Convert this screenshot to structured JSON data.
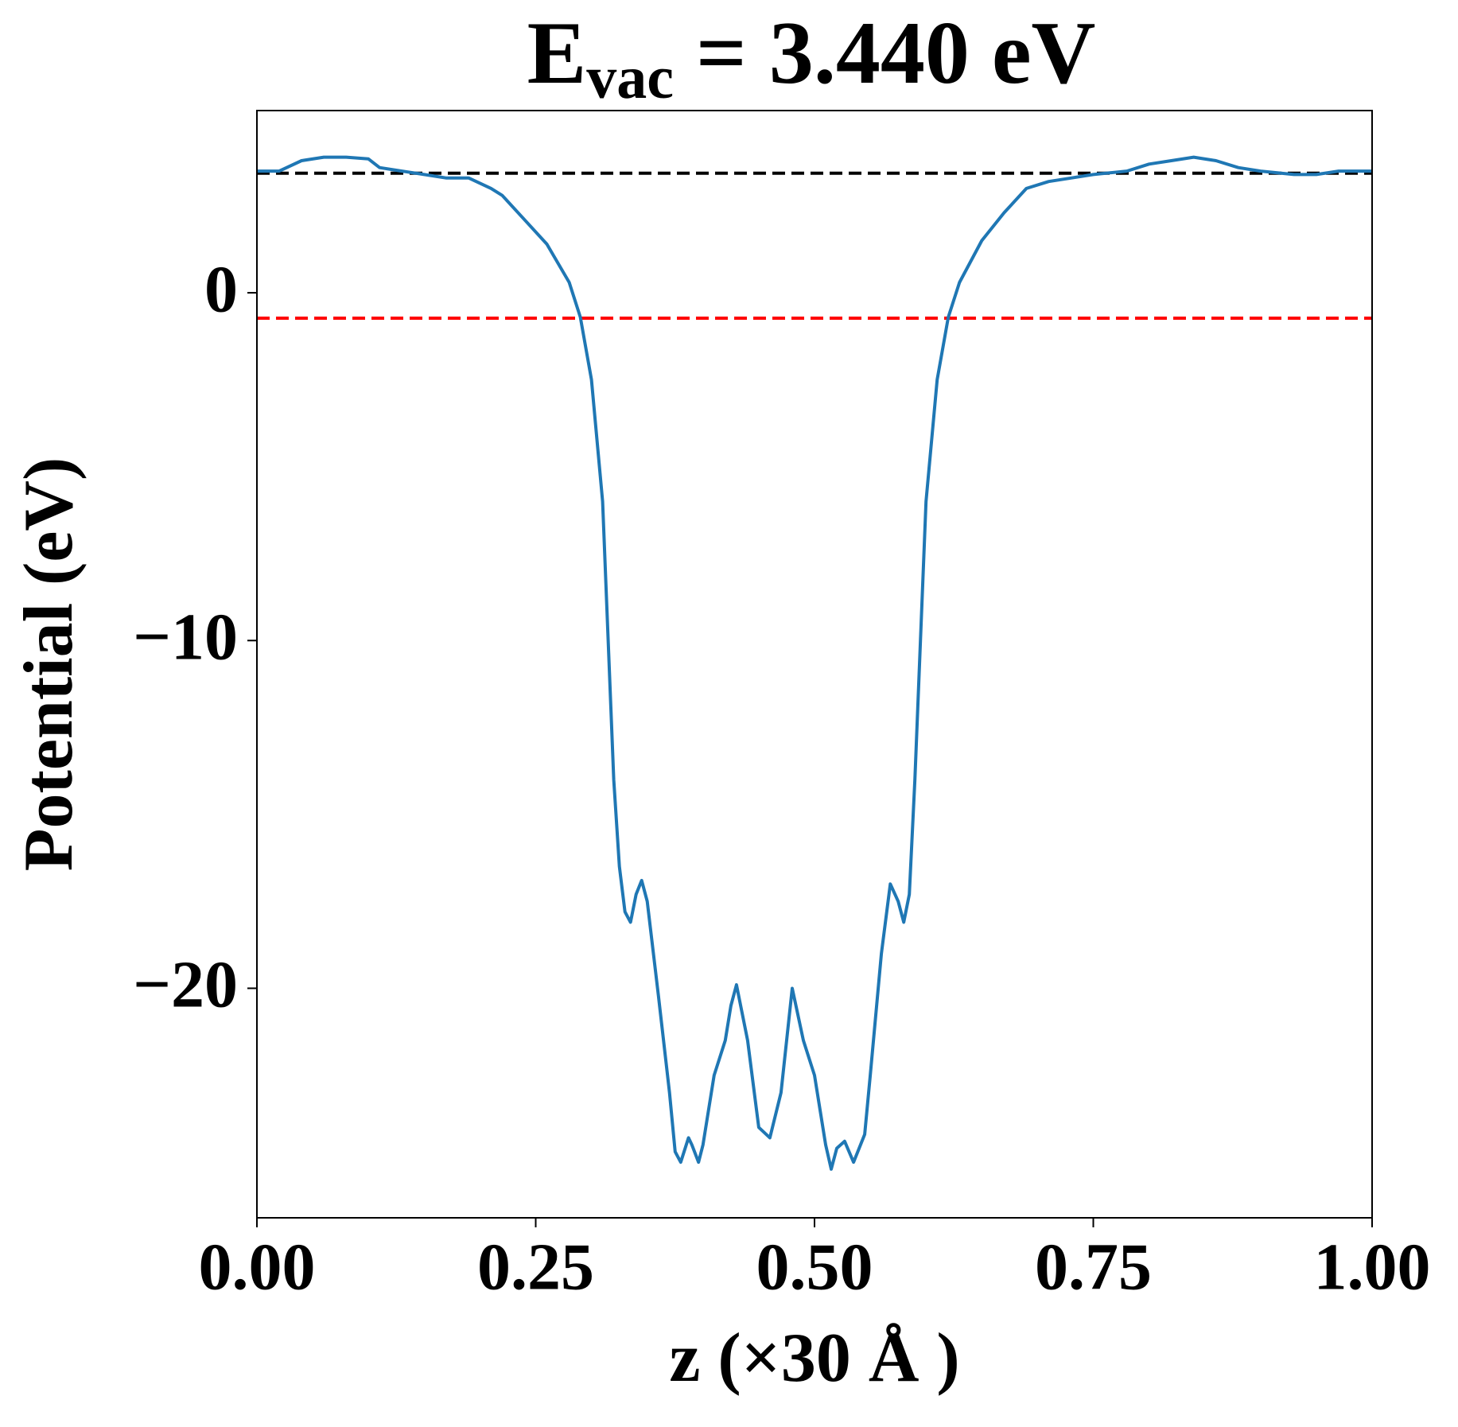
{
  "chart_data": {
    "type": "line",
    "title": {
      "main": "E",
      "sub": "vac",
      "rest": " = 3.440 eV"
    },
    "xlabel": "z (×30 Å )",
    "ylabel": "Potential (eV)",
    "x": [
      0.0,
      0.02,
      0.04,
      0.06,
      0.08,
      0.1,
      0.11,
      0.13,
      0.15,
      0.17,
      0.19,
      0.21,
      0.22,
      0.24,
      0.26,
      0.28,
      0.29,
      0.3,
      0.31,
      0.315,
      0.32,
      0.325,
      0.33,
      0.335,
      0.34,
      0.345,
      0.35,
      0.36,
      0.37,
      0.375,
      0.38,
      0.387,
      0.39,
      0.396,
      0.4,
      0.41,
      0.42,
      0.425,
      0.43,
      0.44,
      0.45,
      0.46,
      0.47,
      0.48,
      0.49,
      0.5,
      0.51,
      0.515,
      0.52,
      0.527,
      0.535,
      0.545,
      0.55,
      0.56,
      0.568,
      0.575,
      0.58,
      0.585,
      0.59,
      0.595,
      0.6,
      0.61,
      0.62,
      0.63,
      0.65,
      0.67,
      0.69,
      0.71,
      0.73,
      0.75,
      0.78,
      0.8,
      0.82,
      0.84,
      0.86,
      0.88,
      0.9,
      0.93,
      0.95,
      0.97,
      1.0
    ],
    "series": [
      {
        "name": "potential",
        "color": "#1f77b4",
        "values": [
          3.5,
          3.5,
          3.8,
          3.9,
          3.9,
          3.85,
          3.6,
          3.5,
          3.4,
          3.3,
          3.3,
          3.0,
          2.8,
          2.1,
          1.4,
          0.3,
          -0.7,
          -2.5,
          -6,
          -10,
          -14,
          -16.5,
          -17.8,
          -18.1,
          -17.3,
          -16.9,
          -17.5,
          -20.2,
          -23,
          -24.7,
          -25.0,
          -24.3,
          -24.5,
          -25.0,
          -24.5,
          -22.5,
          -21.5,
          -20.5,
          -19.9,
          -21.5,
          -24.0,
          -24.3,
          -23,
          -20.0,
          -21.5,
          -22.5,
          -24.5,
          -25.2,
          -24.6,
          -24.4,
          -25.0,
          -24.2,
          -22.5,
          -19,
          -17.0,
          -17.5,
          -18.1,
          -17.3,
          -14,
          -10,
          -6,
          -2.5,
          -0.7,
          0.3,
          1.5,
          2.3,
          3.0,
          3.2,
          3.3,
          3.4,
          3.5,
          3.7,
          3.8,
          3.9,
          3.8,
          3.6,
          3.5,
          3.4,
          3.4,
          3.5,
          3.5
        ]
      }
    ],
    "hlines": [
      {
        "value": 3.44,
        "color": "#000000"
      },
      {
        "value": -0.73,
        "color": "#ff0000"
      }
    ],
    "xlim": [
      0,
      1
    ],
    "ylim": [
      -26.6,
      5.24
    ],
    "xticks": [
      {
        "value": 0,
        "label": "0.00"
      },
      {
        "value": 0.25,
        "label": "0.25"
      },
      {
        "value": 0.5,
        "label": "0.50"
      },
      {
        "value": 0.75,
        "label": "0.75"
      },
      {
        "value": 1,
        "label": "1.00"
      }
    ],
    "yticks": [
      0,
      {
        "value": -10,
        "label": "−10"
      },
      {
        "value": -20,
        "label": "−20"
      }
    ]
  }
}
